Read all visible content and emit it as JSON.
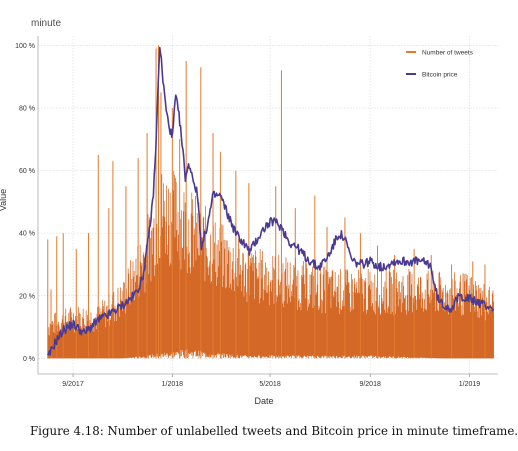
{
  "chart_data": {
    "type": "line",
    "title": "minute",
    "xlabel": "Date",
    "ylabel": "Value",
    "x_range": [
      "2017-07-20",
      "2019-02-05"
    ],
    "ylim": [
      -5,
      103
    ],
    "x_tick_labels": [
      {
        "date": "2017-09-01",
        "label": "9/2017"
      },
      {
        "date": "2018-01-01",
        "label": "1/2018"
      },
      {
        "date": "2018-05-01",
        "label": "5/2018"
      },
      {
        "date": "2018-09-01",
        "label": "9/2018"
      },
      {
        "date": "2019-01-01",
        "label": "1/2019"
      }
    ],
    "y_ticks": [
      {
        "value": 0,
        "label": "0 %"
      },
      {
        "value": 20,
        "label": "20 %"
      },
      {
        "value": 40,
        "label": "40 %"
      },
      {
        "value": 60,
        "label": "60 %"
      },
      {
        "value": 80,
        "label": "80 %"
      },
      {
        "value": 100,
        "label": "100 %"
      }
    ],
    "grid": true,
    "legend_position": "top-right",
    "series": [
      {
        "name": "Number of tweets",
        "color": "#e07b2e",
        "fill": "#d2601a",
        "low_points": [
          [
            "2017-08-01",
            0
          ],
          [
            "2017-09-10",
            0
          ],
          [
            "2017-11-01",
            0
          ],
          [
            "2017-12-01",
            1
          ],
          [
            "2017-12-20",
            2
          ],
          [
            "2018-01-20",
            3
          ],
          [
            "2018-02-20",
            2
          ],
          [
            "2018-04-01",
            1
          ],
          [
            "2018-06-01",
            1
          ],
          [
            "2018-09-01",
            1
          ],
          [
            "2018-12-01",
            0
          ],
          [
            "2019-01-31",
            0
          ]
        ],
        "typical_points": [
          [
            "2017-08-01",
            12
          ],
          [
            "2017-09-01",
            15
          ],
          [
            "2017-10-01",
            15
          ],
          [
            "2017-11-01",
            22
          ],
          [
            "2017-12-01",
            40
          ],
          [
            "2017-12-20",
            55
          ],
          [
            "2018-01-10",
            52
          ],
          [
            "2018-02-01",
            45
          ],
          [
            "2018-03-01",
            38
          ],
          [
            "2018-04-01",
            32
          ],
          [
            "2018-05-01",
            30
          ],
          [
            "2018-06-01",
            28
          ],
          [
            "2018-07-01",
            26
          ],
          [
            "2018-08-01",
            25
          ],
          [
            "2018-09-01",
            25
          ],
          [
            "2018-10-01",
            25
          ],
          [
            "2018-11-01",
            25
          ],
          [
            "2018-12-01",
            24
          ],
          [
            "2019-01-01",
            24
          ],
          [
            "2019-01-31",
            20
          ]
        ],
        "spikes": [
          [
            "2017-08-01",
            38
          ],
          [
            "2017-08-05",
            22
          ],
          [
            "2017-08-12",
            39
          ],
          [
            "2017-08-20",
            40
          ],
          [
            "2017-09-05",
            35
          ],
          [
            "2017-09-20",
            40
          ],
          [
            "2017-10-02",
            65
          ],
          [
            "2017-10-15",
            48
          ],
          [
            "2017-10-20",
            63
          ],
          [
            "2017-11-05",
            55
          ],
          [
            "2017-11-20",
            64
          ],
          [
            "2017-12-01",
            72
          ],
          [
            "2017-12-12",
            99
          ],
          [
            "2017-12-15",
            100
          ],
          [
            "2017-12-18",
            85
          ],
          [
            "2018-01-01",
            80
          ],
          [
            "2018-01-10",
            70
          ],
          [
            "2018-01-18",
            95
          ],
          [
            "2018-02-05",
            93
          ],
          [
            "2018-02-20",
            72
          ],
          [
            "2018-03-01",
            66
          ],
          [
            "2018-03-20",
            60
          ],
          [
            "2018-04-05",
            56
          ],
          [
            "2018-05-08",
            55
          ],
          [
            "2018-05-15",
            92
          ],
          [
            "2018-06-01",
            48
          ],
          [
            "2018-06-25",
            52
          ],
          [
            "2018-07-10",
            42
          ],
          [
            "2018-08-01",
            45
          ],
          [
            "2018-08-20",
            40
          ],
          [
            "2018-09-10",
            36
          ],
          [
            "2018-10-01",
            33
          ],
          [
            "2018-10-25",
            35
          ],
          [
            "2018-11-15",
            33
          ],
          [
            "2018-12-10",
            30
          ],
          [
            "2019-01-05",
            31
          ],
          [
            "2019-01-20",
            30
          ]
        ]
      },
      {
        "name": "Bitcoin price",
        "color": "#4b3a92",
        "points": [
          [
            "2017-08-01",
            0
          ],
          [
            "2017-08-10",
            5
          ],
          [
            "2017-08-20",
            9
          ],
          [
            "2017-09-01",
            11
          ],
          [
            "2017-09-15",
            8
          ],
          [
            "2017-10-01",
            12
          ],
          [
            "2017-10-15",
            14
          ],
          [
            "2017-11-01",
            17
          ],
          [
            "2017-11-15",
            20
          ],
          [
            "2017-11-25",
            25
          ],
          [
            "2017-12-01",
            35
          ],
          [
            "2017-12-08",
            50
          ],
          [
            "2017-12-12",
            68
          ],
          [
            "2017-12-15",
            92
          ],
          [
            "2017-12-17",
            100
          ],
          [
            "2017-12-20",
            90
          ],
          [
            "2017-12-25",
            78
          ],
          [
            "2018-01-01",
            70
          ],
          [
            "2018-01-05",
            84
          ],
          [
            "2018-01-10",
            76
          ],
          [
            "2018-01-17",
            58
          ],
          [
            "2018-01-22",
            62
          ],
          [
            "2018-02-01",
            52
          ],
          [
            "2018-02-06",
            35
          ],
          [
            "2018-02-15",
            45
          ],
          [
            "2018-02-20",
            52
          ],
          [
            "2018-03-01",
            52
          ],
          [
            "2018-03-10",
            46
          ],
          [
            "2018-03-20",
            40
          ],
          [
            "2018-04-01",
            36
          ],
          [
            "2018-04-06",
            34
          ],
          [
            "2018-04-15",
            38
          ],
          [
            "2018-04-25",
            42
          ],
          [
            "2018-05-05",
            44
          ],
          [
            "2018-05-15",
            42
          ],
          [
            "2018-05-25",
            37
          ],
          [
            "2018-06-01",
            36
          ],
          [
            "2018-06-15",
            32
          ],
          [
            "2018-06-29",
            29
          ],
          [
            "2018-07-10",
            32
          ],
          [
            "2018-07-25",
            40
          ],
          [
            "2018-08-01",
            38
          ],
          [
            "2018-08-10",
            31
          ],
          [
            "2018-08-20",
            30
          ],
          [
            "2018-09-01",
            31
          ],
          [
            "2018-09-15",
            29
          ],
          [
            "2018-10-01",
            31
          ],
          [
            "2018-10-15",
            31
          ],
          [
            "2018-11-01",
            31
          ],
          [
            "2018-11-14",
            30
          ],
          [
            "2018-11-20",
            22
          ],
          [
            "2018-11-25",
            18
          ],
          [
            "2018-12-01",
            17
          ],
          [
            "2018-12-10",
            16
          ],
          [
            "2018-12-20",
            20
          ],
          [
            "2019-01-01",
            19
          ],
          [
            "2019-01-10",
            18
          ],
          [
            "2019-01-20",
            17
          ],
          [
            "2019-01-31",
            16
          ]
        ]
      }
    ]
  },
  "figure": {
    "caption": "Figure 4.18: Number of unlabelled tweets and Bitcoin price in minute timeframe."
  }
}
